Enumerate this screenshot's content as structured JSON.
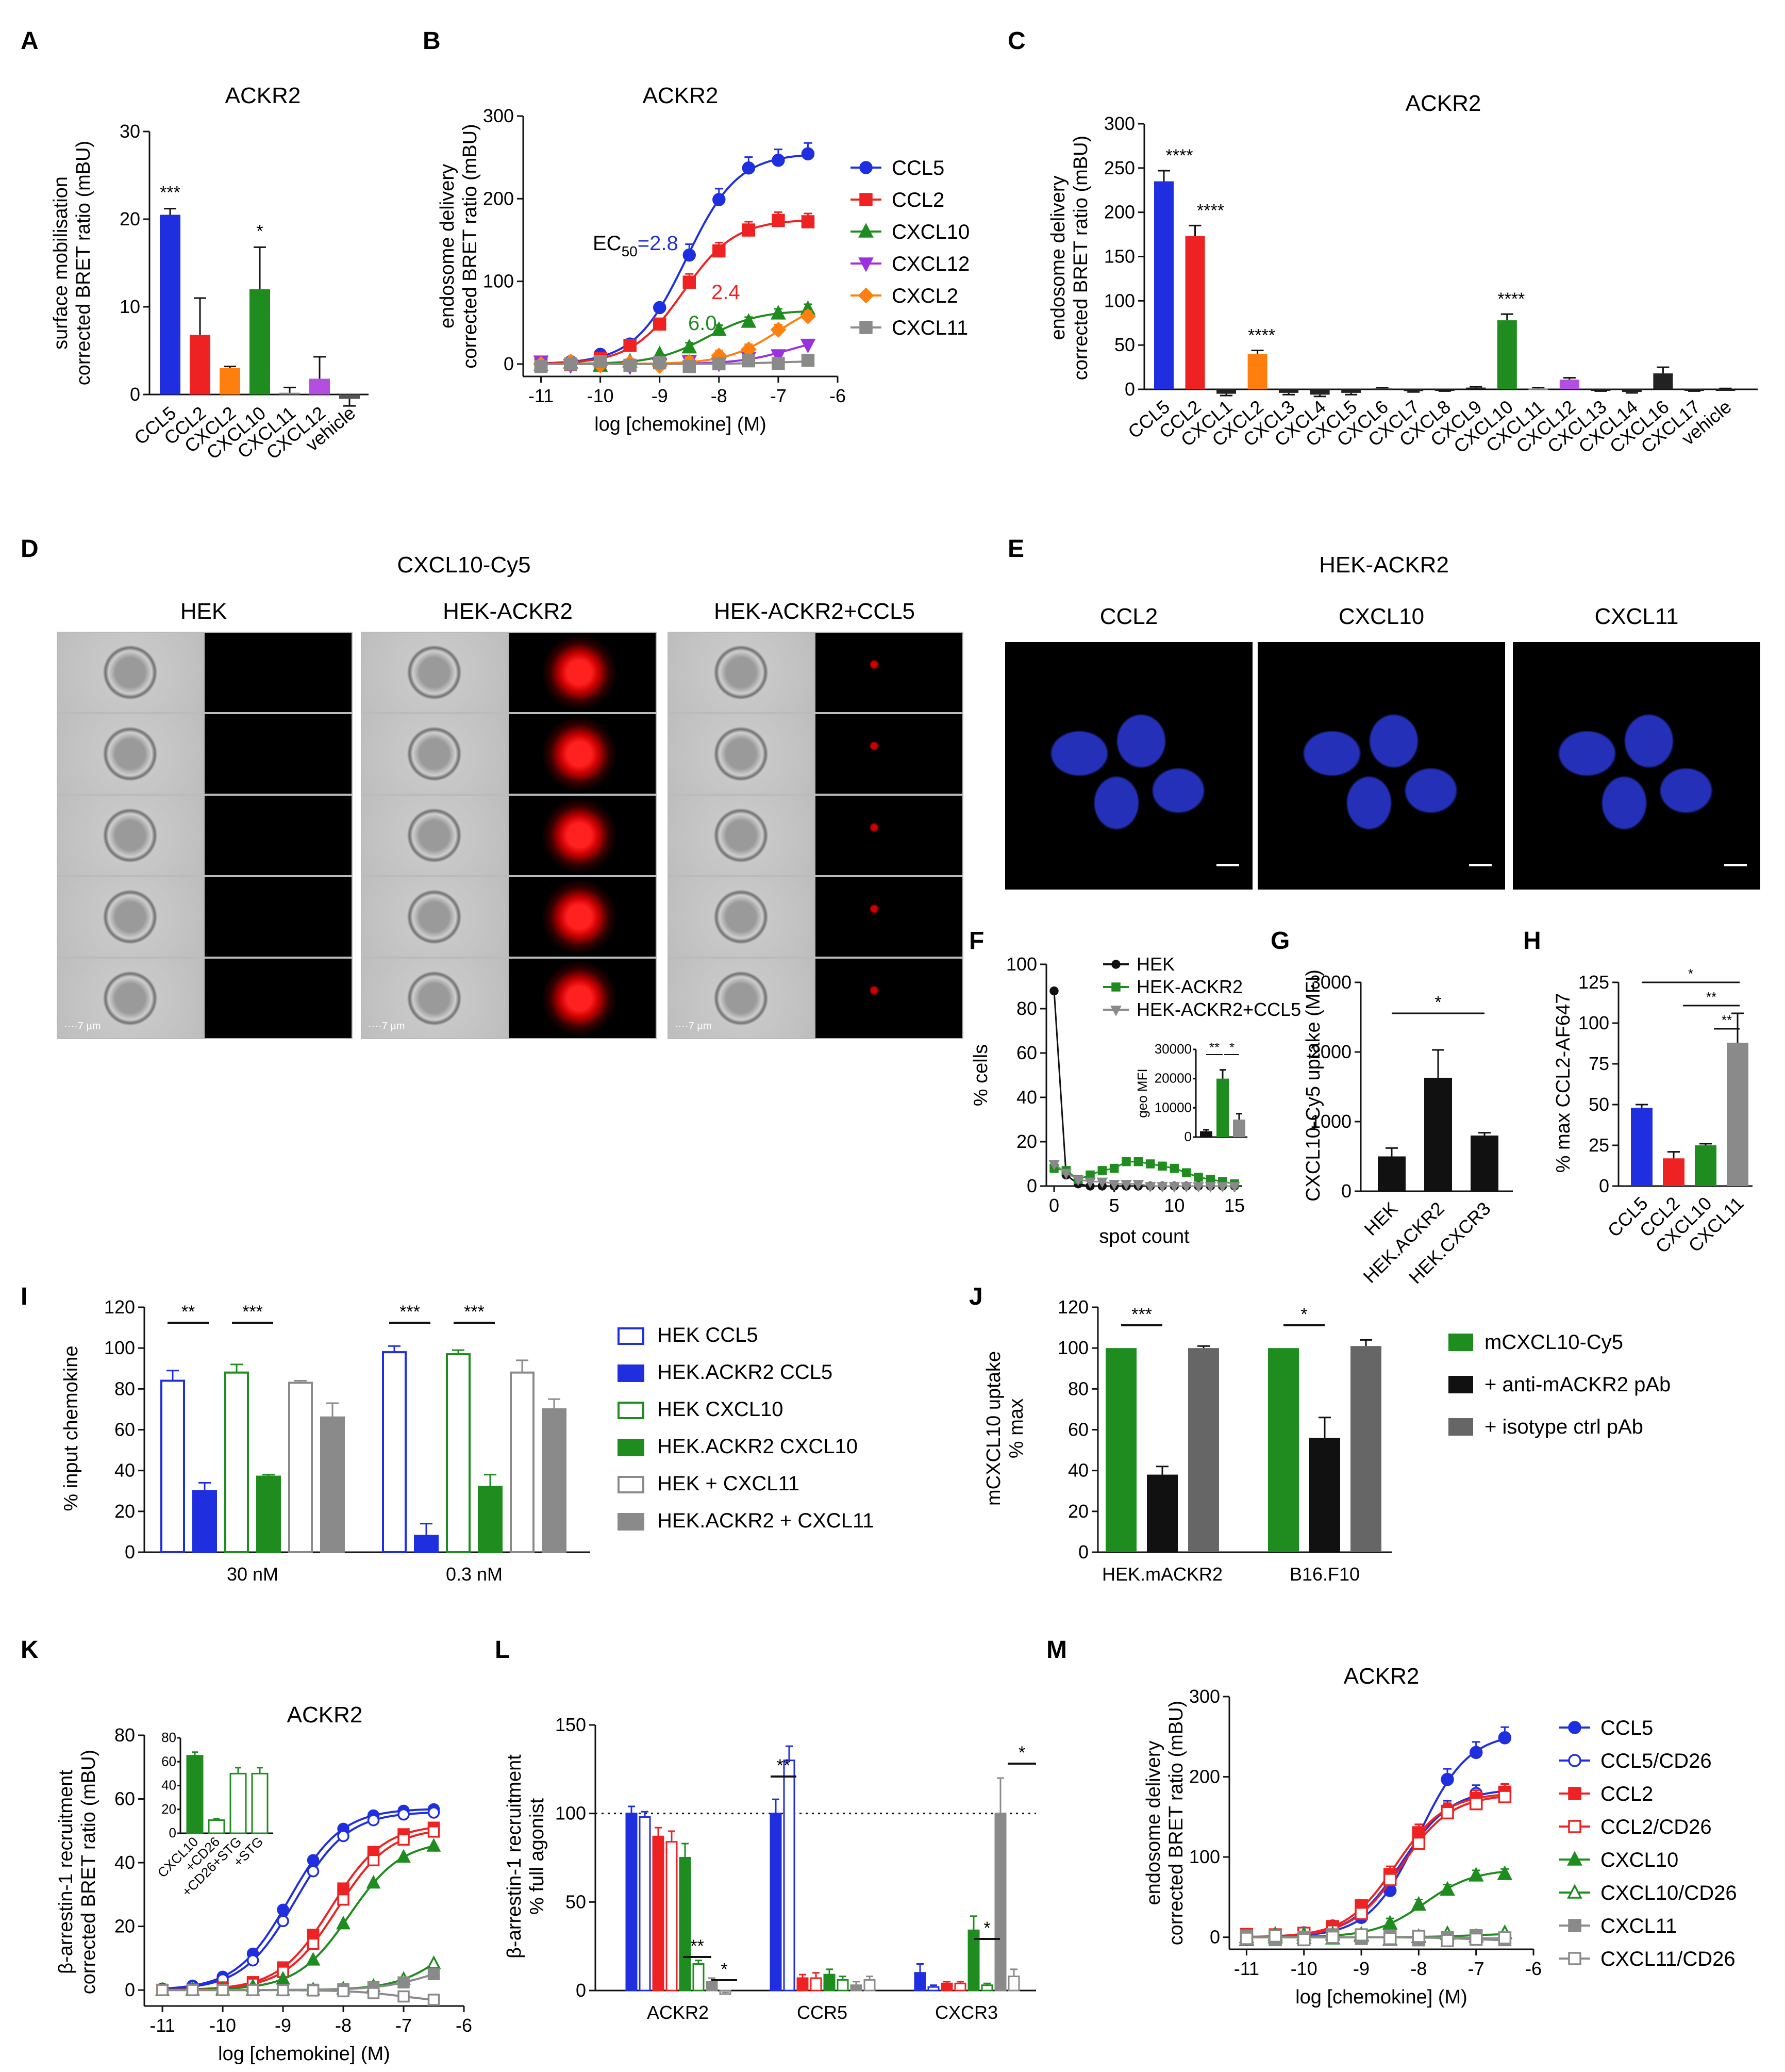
{
  "panels": {
    "A": {
      "label": "A",
      "title": "ACKR2",
      "ylabel": "surface mobilisation\ncorrected BRET ratio (mBU)",
      "ylim": [
        0,
        30
      ],
      "yticks": [
        0,
        10,
        20,
        30
      ],
      "bars": [
        {
          "cat": "CCL5",
          "value": 20.5,
          "err": 0.7,
          "color": "#1f2fe0",
          "sig": "***"
        },
        {
          "cat": "CCL2",
          "value": 6.8,
          "err": 4.2,
          "color": "#ee2222",
          "sig": ""
        },
        {
          "cat": "CXCL2",
          "value": 3.0,
          "err": 0.2,
          "color": "#ff7f0e",
          "sig": ""
        },
        {
          "cat": "CXCL10",
          "value": 12.0,
          "err": 4.8,
          "color": "#1e8c1e",
          "sig": "*"
        },
        {
          "cat": "CXCL11",
          "value": 0.2,
          "err": 0.6,
          "color": "#8a8a8a",
          "sig": ""
        },
        {
          "cat": "CXCL12",
          "value": 1.8,
          "err": 2.5,
          "color": "#b24ee0",
          "sig": ""
        },
        {
          "cat": "vehicle",
          "value": -0.5,
          "err": 0.8,
          "color": "#555555",
          "sig": ""
        }
      ]
    },
    "B": {
      "label": "B",
      "title": "ACKR2",
      "ylabel": "endosome delivery\ncorrected BRET ratio (mBU)",
      "xlabel": "log [chemokine] (M)",
      "xlim": [
        -11.3,
        -6
      ],
      "ylim": [
        -15,
        300
      ],
      "yticks": [
        0,
        100,
        200,
        300
      ],
      "xticks": [
        -11,
        -10,
        -9,
        -8,
        -7,
        -6
      ],
      "series": [
        {
          "name": "CCL5",
          "color": "#1f2fe0",
          "marker": "circle",
          "top": 255,
          "ec50": -8.55
        },
        {
          "name": "CCL2",
          "color": "#ee2222",
          "marker": "square",
          "top": 175,
          "ec50": -8.6
        },
        {
          "name": "CXCL10",
          "color": "#1e8c1e",
          "marker": "triangle",
          "top": 65,
          "ec50": -8.2
        },
        {
          "name": "CXCL12",
          "color": "#9b30e0",
          "marker": "tridown",
          "top": 35,
          "ec50": -6.8
        },
        {
          "name": "CXCL2",
          "color": "#ff7f0e",
          "marker": "diamond",
          "top": 80,
          "ec50": -7.0
        },
        {
          "name": "CXCL11",
          "color": "#8a8a8a",
          "marker": "square",
          "top": 4,
          "ec50": -7.0
        }
      ],
      "x": [
        -11,
        -10.5,
        -10,
        -9.5,
        -9,
        -8.5,
        -8,
        -7.5,
        -7,
        -6.5
      ],
      "annotations": [
        {
          "text": "EC",
          "sub": "50",
          "val": "=2.8",
          "color": "#1f2fe0"
        },
        {
          "text": "2.4",
          "color": "#ee2222"
        },
        {
          "text": "6.0",
          "color": "#1e8c1e"
        }
      ]
    },
    "C": {
      "label": "C",
      "title": "ACKR2",
      "ylabel": "endosome delivery\ncorrected BRET ratio (mBU)",
      "ylim": [
        0,
        300
      ],
      "yticks": [
        0,
        50,
        100,
        150,
        200,
        250,
        300
      ],
      "bars": [
        {
          "cat": "CCL5",
          "value": 235,
          "err": 12,
          "color": "#1f2fe0",
          "sig": "****"
        },
        {
          "cat": "CCL2",
          "value": 173,
          "err": 12,
          "color": "#ee2222",
          "sig": "****"
        },
        {
          "cat": "CXCL1",
          "value": -5,
          "err": 2,
          "color": "#222",
          "sig": ""
        },
        {
          "cat": "CXCL2",
          "value": 40,
          "err": 4,
          "color": "#ff7f0e",
          "sig": "****"
        },
        {
          "cat": "CXCL3",
          "value": -4,
          "err": 2,
          "color": "#222",
          "sig": ""
        },
        {
          "cat": "CXCL4",
          "value": -6,
          "err": 2,
          "color": "#222",
          "sig": ""
        },
        {
          "cat": "CXCL5",
          "value": -4,
          "err": 2,
          "color": "#222",
          "sig": ""
        },
        {
          "cat": "CXCL6",
          "value": 1,
          "err": 1,
          "color": "#222",
          "sig": ""
        },
        {
          "cat": "CXCL7",
          "value": -2,
          "err": 1,
          "color": "#222",
          "sig": ""
        },
        {
          "cat": "CXCL8",
          "value": -1,
          "err": 1,
          "color": "#222",
          "sig": ""
        },
        {
          "cat": "CXCL9",
          "value": 2,
          "err": 1,
          "color": "#222",
          "sig": ""
        },
        {
          "cat": "CXCL10",
          "value": 78,
          "err": 7,
          "color": "#1e8c1e",
          "sig": "****"
        },
        {
          "cat": "CXCL11",
          "value": 1,
          "err": 1,
          "color": "#888",
          "sig": ""
        },
        {
          "cat": "CXCL12",
          "value": 11,
          "err": 2,
          "color": "#b24ee0",
          "sig": ""
        },
        {
          "cat": "CXCL13",
          "value": -1,
          "err": 1,
          "color": "#222",
          "sig": ""
        },
        {
          "cat": "CXCL14",
          "value": -3,
          "err": 1,
          "color": "#222",
          "sig": ""
        },
        {
          "cat": "CXCL16",
          "value": 18,
          "err": 7,
          "color": "#222",
          "sig": ""
        },
        {
          "cat": "CXCL17",
          "value": -1,
          "err": 1,
          "color": "#222",
          "sig": ""
        },
        {
          "cat": "vehicle",
          "value": 0,
          "err": 1,
          "color": "#222",
          "sig": ""
        }
      ]
    },
    "D": {
      "label": "D",
      "title": "CXCL10-Cy5",
      "groups": [
        "HEK",
        "HEK-ACKR2",
        "HEK-ACKR2+CCL5"
      ],
      "scale": "7 µm"
    },
    "E": {
      "label": "E",
      "title": "HEK-ACKR2",
      "images": [
        "CCL2",
        "CXCL10",
        "CXCL11"
      ]
    },
    "F": {
      "label": "F",
      "ylabel": "% cells",
      "xlabel": "spot count",
      "ylim": [
        0,
        100
      ],
      "yticks": [
        0,
        20,
        40,
        60,
        80,
        100
      ],
      "xticks": [
        0,
        5,
        10,
        15
      ],
      "series": [
        {
          "name": "HEK",
          "color": "#111111",
          "values": [
            88,
            5,
            1,
            0,
            0,
            0,
            0,
            0,
            0,
            0,
            0,
            0,
            0,
            0,
            0,
            0
          ]
        },
        {
          "name": "HEK-ACKR2",
          "color": "#1e8c1e",
          "values": [
            8,
            7,
            3,
            5,
            7,
            8,
            11,
            11,
            10,
            9,
            8,
            6,
            4,
            3,
            2,
            1
          ]
        },
        {
          "name": "HEK-ACKR2+CCL5",
          "color": "#8a8a8a",
          "values": [
            10,
            6,
            3,
            2,
            2,
            1,
            1,
            1,
            0,
            0,
            0,
            0,
            0,
            0,
            0,
            0
          ]
        }
      ],
      "inset": {
        "ylabel": "geo MFI",
        "yticks": [
          "0",
          "10000",
          "20000",
          "30000"
        ],
        "values": [
          2000,
          20000,
          6000
        ],
        "errs": [
          500,
          3000,
          2000
        ],
        "sig": [
          "**",
          "*"
        ]
      }
    },
    "G": {
      "label": "G",
      "ylabel": "CXCL10-Cy5 uptake (MFI)",
      "ylim": [
        0,
        3000
      ],
      "yticks": [
        0,
        1000,
        2000,
        3000
      ],
      "sig": "*",
      "bars": [
        {
          "cat": "HEK",
          "value": 500,
          "err": 120,
          "color": "#111"
        },
        {
          "cat": "HEK.ACKR2",
          "value": 1630,
          "err": 400,
          "color": "#111"
        },
        {
          "cat": "HEK.CXCR3",
          "value": 800,
          "err": 40,
          "color": "#111"
        }
      ]
    },
    "H": {
      "label": "H",
      "ylabel": "% max CCL2-AF647",
      "ylim": [
        0,
        125
      ],
      "yticks": [
        0,
        25,
        50,
        75,
        100,
        125
      ],
      "sig": [
        "*",
        "**",
        "**"
      ],
      "bars": [
        {
          "cat": "CCL5",
          "value": 48,
          "err": 2,
          "color": "#1f2fe0"
        },
        {
          "cat": "CCL2",
          "value": 17,
          "err": 4,
          "color": "#ee2222"
        },
        {
          "cat": "CXCL10",
          "value": 25,
          "err": 1,
          "color": "#1e8c1e"
        },
        {
          "cat": "CXCL11",
          "value": 88,
          "err": 18,
          "color": "#8a8a8a"
        }
      ]
    },
    "I": {
      "label": "I",
      "ylabel": "% input chemokine",
      "ylim": [
        0,
        120
      ],
      "yticks": [
        0,
        20,
        40,
        60,
        80,
        100,
        120
      ],
      "groups": [
        "30 nM",
        "0.3 nM"
      ],
      "legend": [
        "HEK CCL5",
        "HEK.ACKR2 CCL5",
        "HEK CXCL10",
        "HEK.ACKR2 CXCL10",
        "HEK + CXCL11",
        "HEK.ACKR2 + CXCL11"
      ],
      "colors": [
        "#1f2fe0",
        "#1f2fe0",
        "#1e8c1e",
        "#1e8c1e",
        "#8a8a8a",
        "#8a8a8a"
      ],
      "filled": [
        false,
        true,
        false,
        true,
        false,
        true
      ],
      "values": [
        [
          84,
          30,
          88,
          37,
          83,
          66
        ],
        [
          98,
          8,
          97,
          32,
          88,
          70
        ]
      ],
      "errs": [
        [
          5,
          4,
          4,
          1,
          1,
          7
        ],
        [
          3,
          6,
          2,
          6,
          6,
          5
        ]
      ],
      "sig": [
        "**",
        "***",
        "***",
        "***"
      ]
    },
    "J": {
      "label": "J",
      "ylabel": "mCXCL10 uptake\n% max",
      "ylim": [
        0,
        120
      ],
      "yticks": [
        0,
        20,
        40,
        60,
        80,
        100,
        120
      ],
      "groups": [
        "HEK.mACKR2",
        "B16.F10"
      ],
      "legend": [
        "mCXCL10-Cy5",
        "+ anti-mACKR2 pAb",
        "+ isotype ctrl pAb"
      ],
      "colors": [
        "#1e8c1e",
        "#111111",
        "#666666"
      ],
      "values": [
        [
          100,
          38,
          100
        ],
        [
          100,
          56,
          101
        ]
      ],
      "errs": [
        [
          0,
          4,
          1
        ],
        [
          0,
          10,
          3
        ]
      ],
      "sig": [
        "***",
        "*"
      ]
    },
    "K": {
      "label": "K",
      "title": "ACKR2",
      "ylabel": "β-arrestin-1 recruitment\ncorrected BRET ratio (mBU)",
      "xlabel": "log [chemokine] (M)",
      "ylim": [
        -5,
        80
      ],
      "yticks": [
        0,
        20,
        40,
        60,
        80
      ],
      "xticks": [
        -11,
        -10,
        -9,
        -8,
        -7,
        -6
      ],
      "series": [
        {
          "name": "CCL5",
          "color": "#1f2fe0",
          "open": false,
          "top": 57,
          "ec50": -8.9
        },
        {
          "name": "CCL5/CD26",
          "color": "#1f2fe0",
          "open": true,
          "top": 56,
          "ec50": -8.8
        },
        {
          "name": "CCL2",
          "color": "#ee2222",
          "open": false,
          "top": 52,
          "ec50": -8.2
        },
        {
          "name": "CCL2/CD26",
          "color": "#ee2222",
          "open": true,
          "top": 51,
          "ec50": -8.1
        },
        {
          "name": "CXCL10",
          "color": "#1e8c1e",
          "open": false,
          "top": 47,
          "ec50": -7.9
        },
        {
          "name": "CXCL10/CD26",
          "color": "#1e8c1e",
          "open": true,
          "top": 25,
          "ec50": -6.2
        },
        {
          "name": "CXCL11",
          "color": "#8a8a8a",
          "open": false,
          "top": 10,
          "ec50": -6.5
        },
        {
          "name": "CXCL11/CD26",
          "color": "#8a8a8a",
          "open": true,
          "top": -4,
          "ec50": -7.0
        }
      ],
      "inset": {
        "yticks": [
          0,
          20,
          40,
          60,
          80
        ],
        "cats": [
          "CXCL10",
          "+CD26",
          "+CD26+STG",
          "+STG"
        ],
        "values": [
          65,
          11,
          50,
          50
        ],
        "errs": [
          3,
          1,
          5,
          5
        ]
      }
    },
    "L": {
      "label": "L",
      "ylabel": "β-arrestin-1 recruitment\n% full agonist",
      "ylim": [
        0,
        150
      ],
      "yticks": [
        0,
        50,
        100,
        150
      ],
      "groups": [
        "ACKR2",
        "CCR5",
        "CXCR3"
      ],
      "colors": [
        "#1f2fe0",
        "#1f2fe0",
        "#ee2222",
        "#ee2222",
        "#1e8c1e",
        "#1e8c1e",
        "#8a8a8a",
        "#8a8a8a"
      ],
      "open": [
        false,
        true,
        false,
        true,
        false,
        true,
        false,
        true
      ],
      "values": [
        [
          100,
          98,
          87,
          84,
          75,
          15,
          5,
          -2
        ],
        [
          100,
          130,
          7,
          7,
          9,
          6,
          3,
          6
        ],
        [
          10,
          2,
          4,
          4,
          34,
          3,
          100,
          8
        ]
      ],
      "errs": [
        [
          4,
          3,
          5,
          6,
          8,
          2,
          2,
          1
        ],
        [
          8,
          8,
          2,
          3,
          3,
          2,
          2,
          2
        ],
        [
          5,
          1,
          1,
          1,
          8,
          1,
          20,
          4
        ]
      ],
      "sig": [
        "**",
        "*",
        "**",
        "*",
        "*"
      ],
      "refline": 100
    },
    "M": {
      "label": "M",
      "title": "ACKR2",
      "ylabel": "endosome delivery\ncorrected BRET ratio (mBU)",
      "xlabel": "log [chemokine] (M)",
      "ylim": [
        -15,
        300
      ],
      "yticks": [
        0,
        100,
        200,
        300
      ],
      "xticks": [
        -11,
        -10,
        -9,
        -8,
        -7,
        -6
      ],
      "series": [
        {
          "name": "CCL5",
          "color": "#1f2fe0",
          "open": false,
          "top": 255,
          "ec50": -8.0
        },
        {
          "name": "CCL5/CD26",
          "color": "#1f2fe0",
          "open": true,
          "top": 185,
          "ec50": -8.3
        },
        {
          "name": "CCL2",
          "color": "#ee2222",
          "open": false,
          "top": 180,
          "ec50": -8.4
        },
        {
          "name": "CCL2/CD26",
          "color": "#ee2222",
          "open": true,
          "top": 178,
          "ec50": -8.3
        },
        {
          "name": "CXCL10",
          "color": "#1e8c1e",
          "open": false,
          "top": 85,
          "ec50": -7.9
        },
        {
          "name": "CXCL10/CD26",
          "color": "#1e8c1e",
          "open": true,
          "top": 5,
          "ec50": -7.0
        },
        {
          "name": "CXCL11",
          "color": "#8a8a8a",
          "open": false,
          "top": -2,
          "ec50": -7.0
        },
        {
          "name": "CXCL11/CD26",
          "color": "#8a8a8a",
          "open": true,
          "top": -5,
          "ec50": -7.0
        }
      ]
    }
  }
}
